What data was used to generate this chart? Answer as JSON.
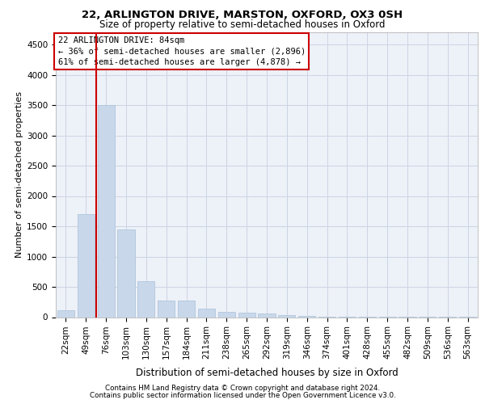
{
  "title_line1": "22, ARLINGTON DRIVE, MARSTON, OXFORD, OX3 0SH",
  "title_line2": "Size of property relative to semi-detached houses in Oxford",
  "xlabel": "Distribution of semi-detached houses by size in Oxford",
  "ylabel": "Number of semi-detached properties",
  "footer_line1": "Contains HM Land Registry data © Crown copyright and database right 2024.",
  "footer_line2": "Contains public sector information licensed under the Open Government Licence v3.0.",
  "categories": [
    "22sqm",
    "49sqm",
    "76sqm",
    "103sqm",
    "130sqm",
    "157sqm",
    "184sqm",
    "211sqm",
    "238sqm",
    "265sqm",
    "292sqm",
    "319sqm",
    "346sqm",
    "374sqm",
    "401sqm",
    "428sqm",
    "455sqm",
    "482sqm",
    "509sqm",
    "536sqm",
    "563sqm"
  ],
  "values": [
    110,
    1700,
    3500,
    1450,
    600,
    270,
    270,
    145,
    90,
    75,
    55,
    30,
    18,
    10,
    5,
    3,
    2,
    2,
    2,
    2,
    2
  ],
  "bar_color": "#c8d8ea",
  "bar_edge_color": "#a8c0d8",
  "grid_color": "#ccd5e3",
  "background_color": "#edf1f8",
  "annotation_line1": "22 ARLINGTON DRIVE: 84sqm",
  "annotation_line2": "← 36% of semi-detached houses are smaller (2,896)",
  "annotation_line3": "61% of semi-detached houses are larger (4,878) →",
  "annotation_box_facecolor": "#ffffff",
  "annotation_box_edgecolor": "#cc0000",
  "property_line_color": "#cc0000",
  "property_line_x": 1.5,
  "ylim_min": 0,
  "ylim_max": 4700,
  "yticks": [
    0,
    500,
    1000,
    1500,
    2000,
    2500,
    3000,
    3500,
    4000,
    4500
  ],
  "title1_fontsize": 9.5,
  "title2_fontsize": 8.5,
  "ylabel_fontsize": 8,
  "xlabel_fontsize": 8.5,
  "tick_fontsize": 7.5,
  "footer_fontsize": 6.3
}
